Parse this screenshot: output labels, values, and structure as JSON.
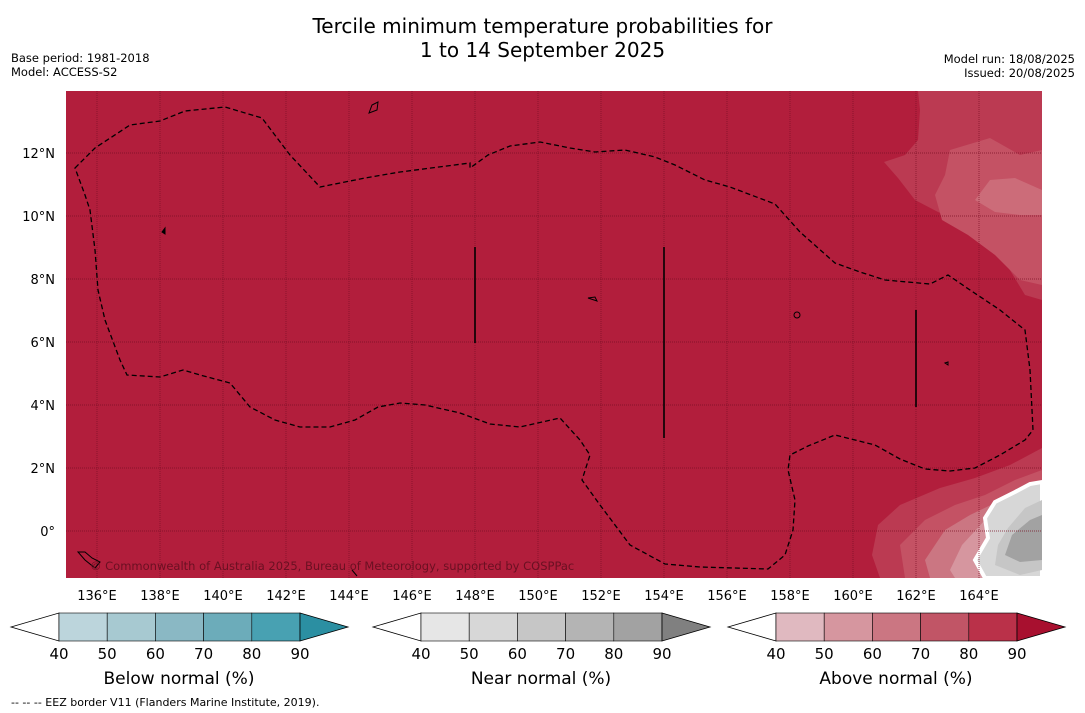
{
  "title": {
    "line1": "Tercile minimum temperature probabilities for",
    "line2": "1 to 14 September 2025"
  },
  "meta_left": {
    "base_period": "Base period: 1981-2018",
    "model": "Model: ACCESS-S2"
  },
  "meta_right": {
    "model_run": "Model run: 18/08/2025",
    "issued": "Issued: 20/08/2025"
  },
  "map": {
    "lat_labels": [
      "12°N",
      "10°N",
      "8°N",
      "6°N",
      "4°N",
      "2°N",
      "0°"
    ],
    "lon_labels": [
      "136°E",
      "138°E",
      "140°E",
      "142°E",
      "144°E",
      "146°E",
      "148°E",
      "150°E",
      "152°E",
      "154°E",
      "156°E",
      "158°E",
      "160°E",
      "162°E",
      "164°E"
    ],
    "copyright": "© Commonwealth of Australia 2025, Bureau of Meteorology, supported by COSPPac",
    "background_color": "#b21e3c"
  },
  "colorbars": [
    {
      "label": "Below normal (%)",
      "ticks": [
        "40",
        "50",
        "60",
        "70",
        "80",
        "90"
      ],
      "colors": [
        "#ffffff",
        "#bcd5dc",
        "#a7c9d1",
        "#8ab8c4",
        "#6cacba",
        "#48a1b2",
        "#2b8fa2"
      ]
    },
    {
      "label": "Near normal (%)",
      "ticks": [
        "40",
        "50",
        "60",
        "70",
        "80",
        "90"
      ],
      "colors": [
        "#ffffff",
        "#e6e6e6",
        "#d7d7d7",
        "#c6c6c6",
        "#b4b4b4",
        "#a2a2a2",
        "#808080"
      ]
    },
    {
      "label": "Above normal (%)",
      "ticks": [
        "40",
        "50",
        "60",
        "70",
        "80",
        "90"
      ],
      "colors": [
        "#ffffff",
        "#e0b9c0",
        "#d6969f",
        "#cb7682",
        "#c15566",
        "#ba3149",
        "#a8102f"
      ]
    }
  ],
  "footnote": "--  --  -- EEZ border V11 (Flanders Marine Institute, 2019)."
}
